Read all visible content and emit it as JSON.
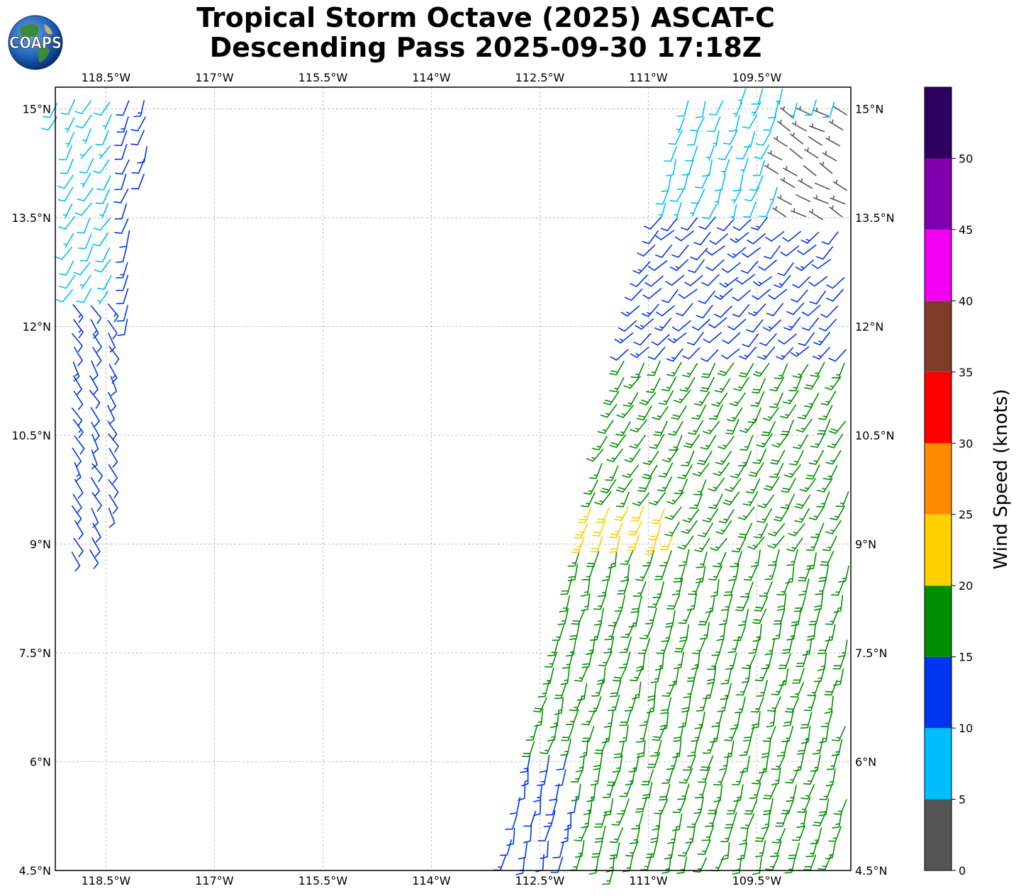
{
  "title": {
    "line1": "Tropical Storm Octave (2025) ASCAT-C",
    "line2": "Descending Pass 2025-09-30 17:18Z"
  },
  "logo": {
    "text": "COAPS"
  },
  "colors": {
    "gray": "#555555",
    "cyan": "#00bfff",
    "blue": "#0035f0",
    "green": "#008f00",
    "yellow": "#ffd000",
    "orange": "#ff8c00",
    "red": "#ff0000",
    "brown": "#7f3c28",
    "magenta": "#f200f2",
    "purple": "#8000b0",
    "dark_purple": "#2d0060"
  },
  "chart_data": {
    "type": "wind-barb-map",
    "projection": "PlateCarree",
    "lon_range": [
      -119.2,
      -108.2
    ],
    "lat_range": [
      4.5,
      15.3
    ],
    "lon_ticks": [
      -118.5,
      -117,
      -115.5,
      -114,
      -112.5,
      -111,
      -109.5
    ],
    "lon_tick_labels": [
      "118.5°W",
      "117°W",
      "115.5°W",
      "114°W",
      "112.5°W",
      "111°W",
      "109.5°W"
    ],
    "lat_ticks": [
      15,
      13.5,
      12,
      10.5,
      9,
      7.5,
      6,
      4.5
    ],
    "lat_tick_labels": [
      "15°N",
      "13.5°N",
      "12°N",
      "10.5°N",
      "9°N",
      "7.5°N",
      "6°N",
      "4.5°N"
    ],
    "gridlines": true,
    "colorbar": {
      "label": "Wind Speed (knots)",
      "bounds": [
        0,
        5,
        10,
        15,
        20,
        25,
        30,
        35,
        40,
        45,
        50,
        55
      ],
      "tick_labels": [
        "0",
        "5",
        "10",
        "15",
        "20",
        "25",
        "30",
        "35",
        "40",
        "45",
        "50"
      ],
      "colors": [
        "#555555",
        "#00bfff",
        "#0035f0",
        "#008f00",
        "#ffd000",
        "#ff8c00",
        "#ff0000",
        "#7f3c28",
        "#f200f2",
        "#8000b0",
        "#2d0060"
      ]
    },
    "swaths": [
      {
        "name": "west",
        "lon_min": -119.2,
        "lon_max": -117.8,
        "lat_min": 8.9,
        "lat_max": 15.3,
        "regions": [
          {
            "lon_min": -119.2,
            "lon_max": -117.8,
            "lat_min": 12.0,
            "lat_max": 15.3,
            "speed_kt": 12,
            "direction_deg": 200
          },
          {
            "lon_min": -119.2,
            "lon_max": -118.4,
            "lat_min": 12.3,
            "lat_max": 15.3,
            "speed_kt": 8,
            "direction_deg": 210
          },
          {
            "lon_min": -119.2,
            "lon_max": -118.3,
            "lat_min": 8.9,
            "lat_max": 12.3,
            "speed_kt": 12,
            "direction_deg": 150
          }
        ]
      },
      {
        "name": "east",
        "lat_min": 4.5,
        "lat_max": 15.3,
        "lon_edge_south": -113.0,
        "lon_edge_north": -110.4,
        "lon_max": -108.2,
        "regions": [
          {
            "lat_min": 11.2,
            "lat_max": 15.3,
            "speed_kt": 8,
            "direction_deg": 200
          },
          {
            "lat_min": 11.0,
            "lat_max": 13.6,
            "speed_kt": 12,
            "direction_deg": 225
          },
          {
            "lat_min": 13.3,
            "lat_max": 15.0,
            "lon_min": -109.2,
            "speed_kt": 3,
            "direction_deg": 300
          },
          {
            "lat_min": 9.0,
            "lat_max": 11.6,
            "speed_kt": 17,
            "direction_deg": 210
          },
          {
            "lat_min": 7.2,
            "lat_max": 9.6,
            "lon_max": -110.6,
            "speed_kt": 22,
            "direction_deg": 200
          },
          {
            "lat_min": 4.5,
            "lat_max": 9.0,
            "speed_kt": 17,
            "direction_deg": 195
          },
          {
            "lat_min": 4.5,
            "lat_max": 6.3,
            "lon_max": -112.0,
            "speed_kt": 12,
            "direction_deg": 190
          }
        ]
      }
    ]
  }
}
